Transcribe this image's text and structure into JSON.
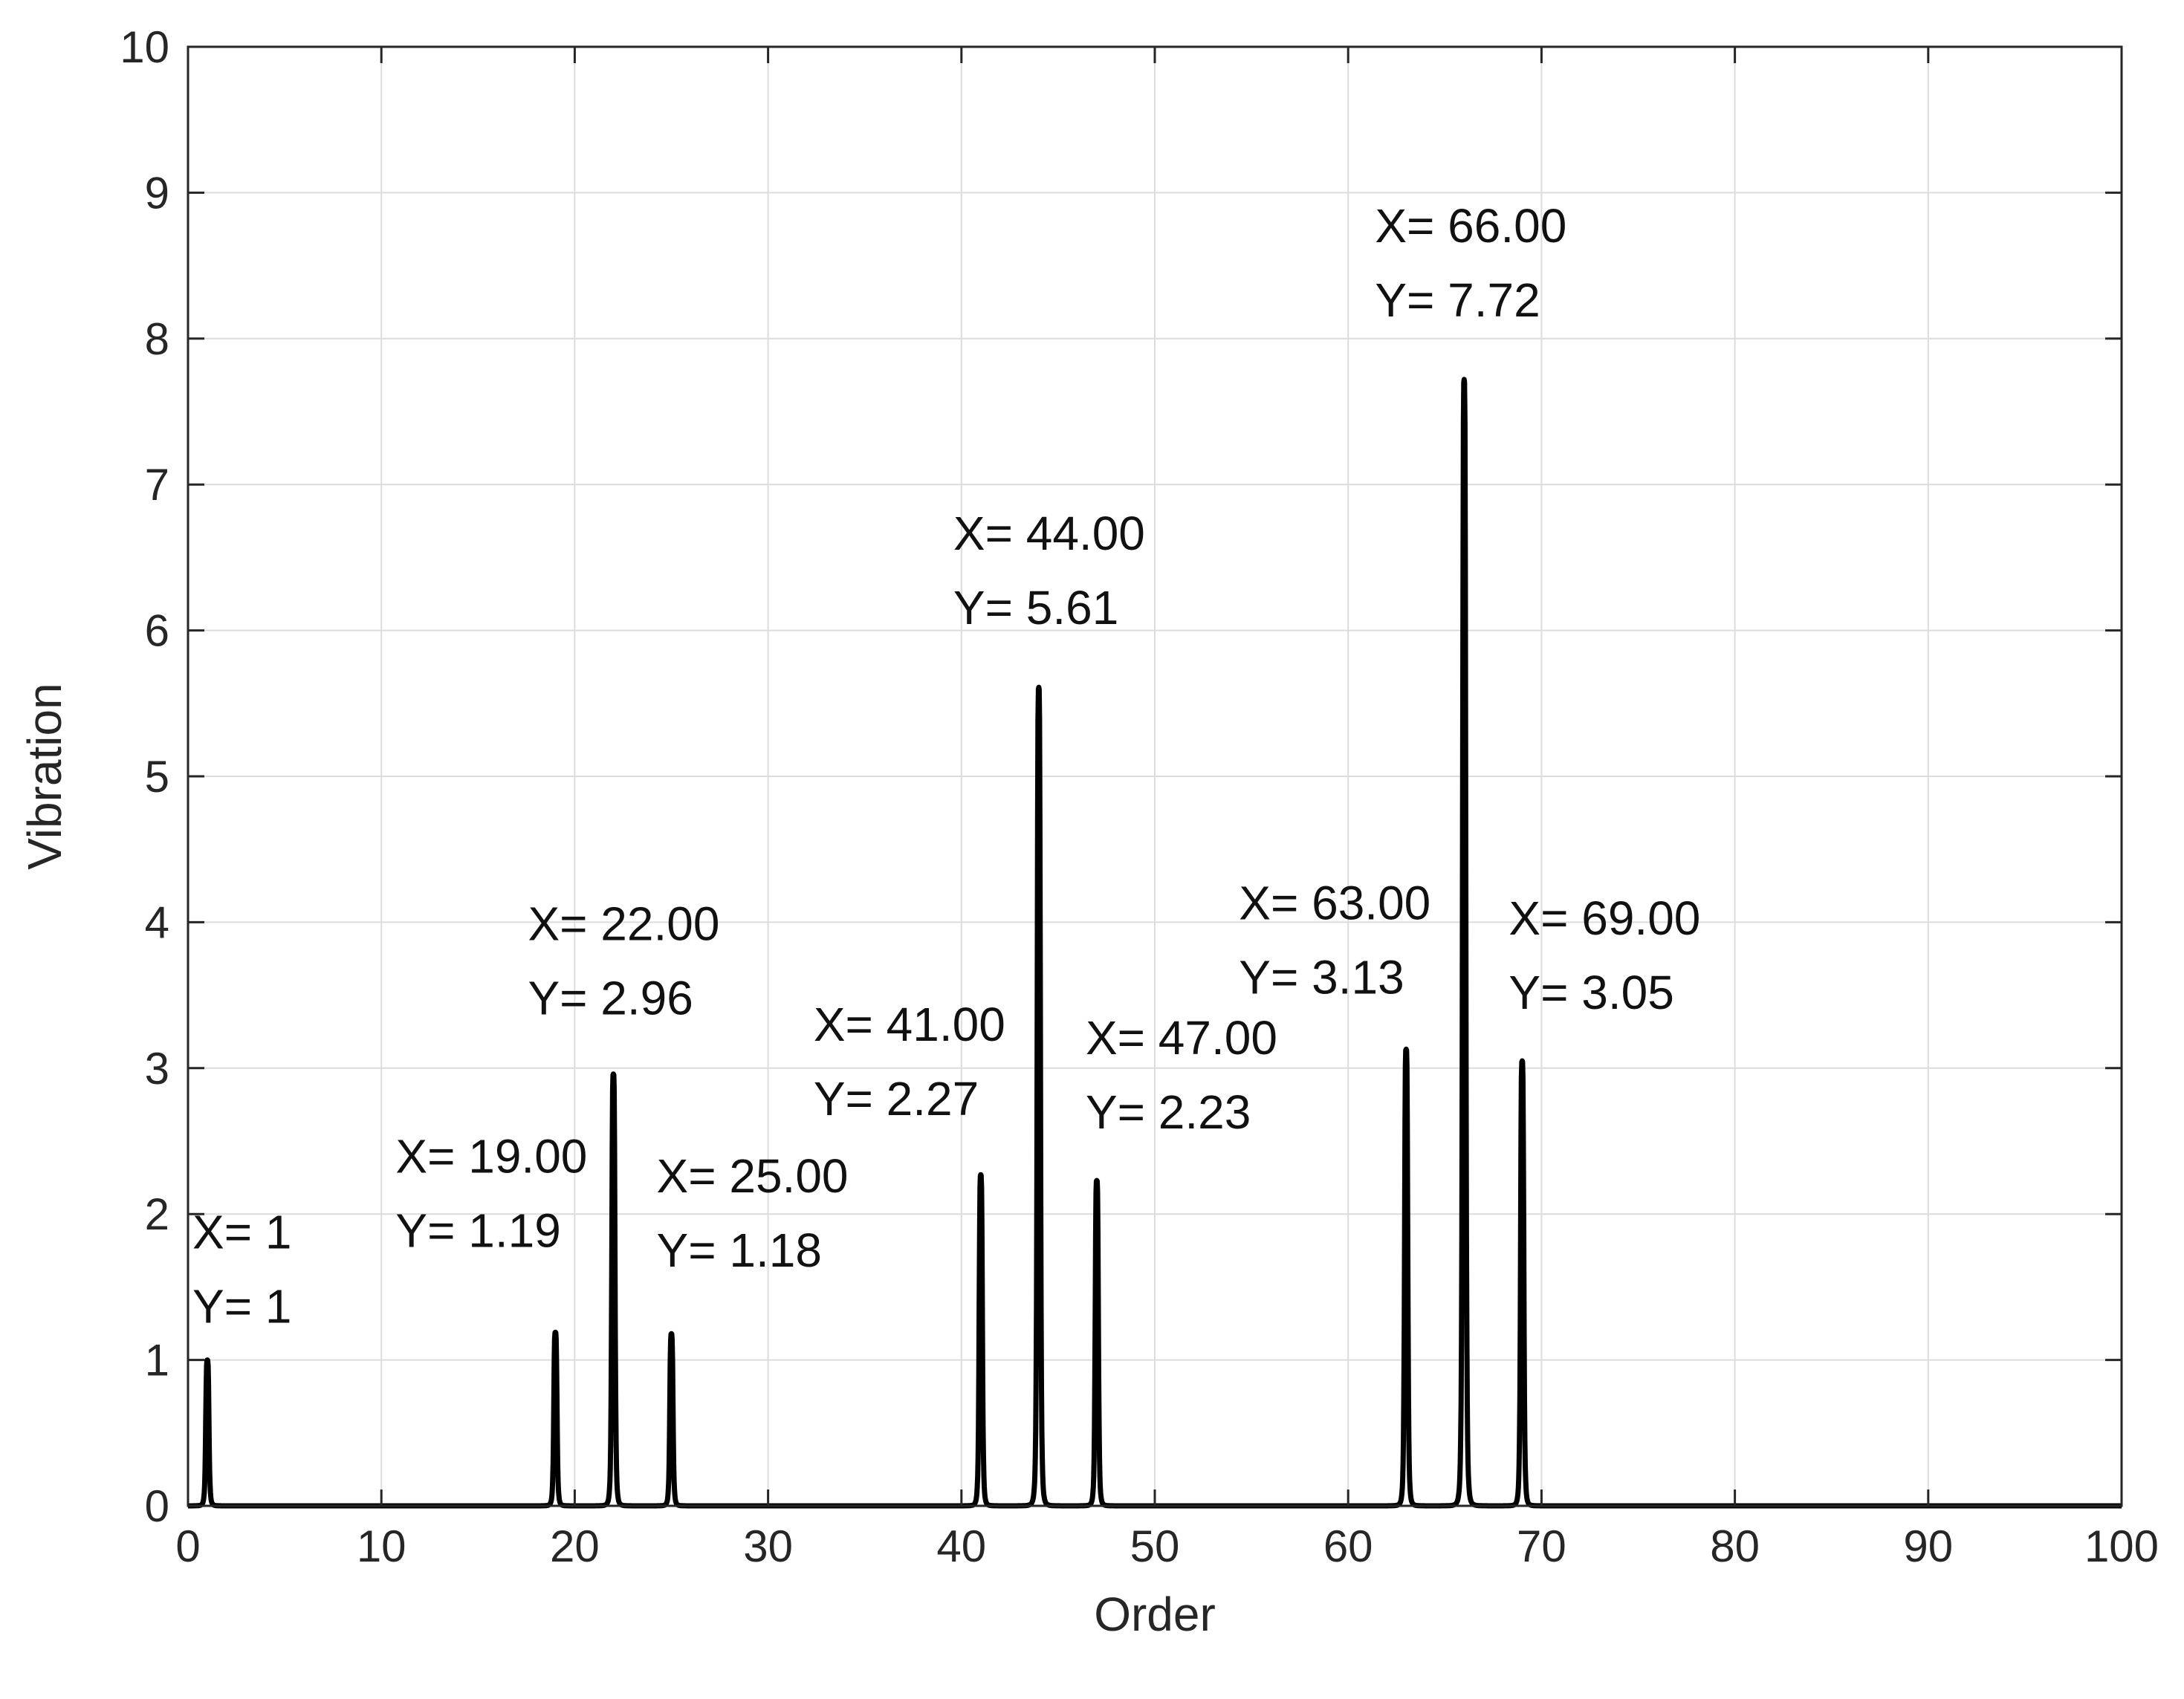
{
  "chart_data": {
    "type": "line",
    "title": "",
    "xlabel": "Order",
    "ylabel": "Vibration",
    "xlim": [
      0,
      100
    ],
    "ylim": [
      0,
      10
    ],
    "xticks": [
      0,
      10,
      20,
      30,
      40,
      50,
      60,
      70,
      80,
      90,
      100
    ],
    "yticks": [
      0,
      1,
      2,
      3,
      4,
      5,
      6,
      7,
      8,
      9,
      10
    ],
    "grid": true,
    "line_color": "#000000",
    "series": [
      {
        "peaks": [
          {
            "x": 1,
            "y": 1
          },
          {
            "x": 19,
            "y": 1.19
          },
          {
            "x": 22,
            "y": 2.96
          },
          {
            "x": 25,
            "y": 1.18
          },
          {
            "x": 41,
            "y": 2.27
          },
          {
            "x": 44,
            "y": 5.61
          },
          {
            "x": 47,
            "y": 2.23
          },
          {
            "x": 63,
            "y": 3.13
          },
          {
            "x": 66,
            "y": 7.72
          },
          {
            "x": 69,
            "y": 3.05
          }
        ]
      }
    ],
    "annotations": [
      {
        "x": 1,
        "y": 1,
        "line1": "X= 1",
        "line2": "Y= 1"
      },
      {
        "x": 19,
        "y": 1.19,
        "line1": "X= 19.00",
        "line2": "Y= 1.19"
      },
      {
        "x": 22,
        "y": 2.96,
        "line1": "X= 22.00",
        "line2": "Y= 2.96"
      },
      {
        "x": 25,
        "y": 1.18,
        "line1": "X= 25.00",
        "line2": "Y= 1.18"
      },
      {
        "x": 41,
        "y": 2.27,
        "line1": "X= 41.00",
        "line2": "Y= 2.27"
      },
      {
        "x": 44,
        "y": 5.61,
        "line1": "X= 44.00",
        "line2": "Y= 5.61"
      },
      {
        "x": 47,
        "y": 2.23,
        "line1": "X= 47.00",
        "line2": "Y= 2.23"
      },
      {
        "x": 63,
        "y": 3.13,
        "line1": "X= 63.00",
        "line2": "Y= 3.13"
      },
      {
        "x": 66,
        "y": 7.72,
        "line1": "X= 66.00",
        "line2": "Y= 7.72"
      },
      {
        "x": 69,
        "y": 3.05,
        "line1": "X= 69.00",
        "line2": "Y= 3.05"
      }
    ]
  }
}
